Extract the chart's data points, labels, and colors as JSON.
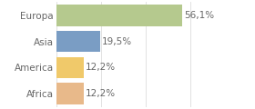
{
  "categories": [
    "Europa",
    "Asia",
    "America",
    "Africa"
  ],
  "values": [
    56.1,
    19.5,
    12.2,
    12.2
  ],
  "labels": [
    "56,1%",
    "19,5%",
    "12,2%",
    "12,2%"
  ],
  "bar_colors": [
    "#b5c98e",
    "#7a9dc4",
    "#f0c96a",
    "#e8b98a"
  ],
  "background_color": "#ffffff",
  "xlim": [
    0,
    75
  ],
  "bar_height": 0.82,
  "label_fontsize": 7.5,
  "category_fontsize": 7.5,
  "label_color": "#666666",
  "grid_color": "#dddddd"
}
